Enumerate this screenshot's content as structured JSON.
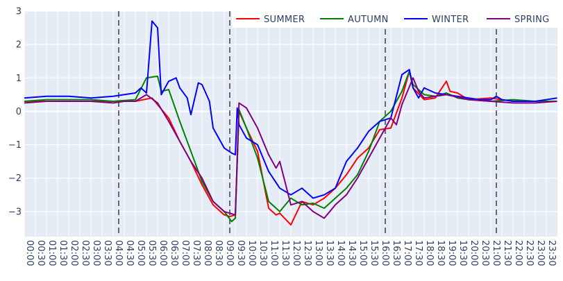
{
  "chart_data": {
    "type": "line",
    "title": "",
    "xlabel": "",
    "ylabel": "",
    "ylim": [
      -3.75,
      3
    ],
    "y_ticks": [
      {
        "value": 3,
        "label": "3"
      },
      {
        "value": 2,
        "label": "2"
      },
      {
        "value": 1,
        "label": "1"
      },
      {
        "value": 0,
        "label": "0"
      },
      {
        "value": -1,
        "label": "−1"
      },
      {
        "value": -2,
        "label": "−2"
      },
      {
        "value": -3,
        "label": "−3"
      }
    ],
    "x_tick_labels": [
      "00:00",
      "00:30",
      "01:00",
      "01:30",
      "02:00",
      "02:30",
      "03:00",
      "03:30",
      "04:00",
      "04:30",
      "05:00",
      "05:30",
      "06:00",
      "06:30",
      "07:00",
      "07:30",
      "08:00",
      "08:30",
      "09:00",
      "09:30",
      "10:00",
      "10:30",
      "11:00",
      "11:30",
      "12:00",
      "12:30",
      "13:00",
      "13:30",
      "14:00",
      "14:30",
      "15:00",
      "15:30",
      "16:00",
      "16:30",
      "17:00",
      "17:30",
      "18:00",
      "18:30",
      "19:00",
      "19:30",
      "20:00",
      "20:30",
      "21:00",
      "21:30",
      "22:00",
      "22:30",
      "23:00",
      "23:30"
    ],
    "vertical_markers": [
      "04:15",
      "09:15",
      "16:15",
      "21:15"
    ],
    "grid": true,
    "legend_position": "top-right",
    "series": [
      {
        "name": "SUMMER",
        "color": "#ff0000",
        "x": [
          "00:00",
          "01:00",
          "02:00",
          "03:00",
          "04:00",
          "04:45",
          "05:00",
          "05:45",
          "06:00",
          "06:30",
          "07:00",
          "07:30",
          "08:00",
          "08:30",
          "09:00",
          "09:15",
          "09:30",
          "09:40",
          "10:00",
          "10:30",
          "11:00",
          "11:20",
          "11:30",
          "12:00",
          "12:30",
          "13:00",
          "13:30",
          "14:00",
          "14:30",
          "15:00",
          "15:30",
          "16:00",
          "16:30",
          "17:00",
          "17:20",
          "17:30",
          "18:00",
          "18:30",
          "19:00",
          "19:10",
          "19:30",
          "20:00",
          "21:00",
          "21:30",
          "22:00",
          "23:00",
          "23:59"
        ],
        "values": [
          0.3,
          0.3,
          0.3,
          0.3,
          0.3,
          0.3,
          0.3,
          0.4,
          0.2,
          -0.2,
          -0.9,
          -1.5,
          -2.2,
          -2.8,
          -3.1,
          -3.15,
          -3.1,
          0.0,
          -0.5,
          -1.2,
          -2.9,
          -3.1,
          -3.05,
          -3.4,
          -2.7,
          -2.8,
          -2.6,
          -2.3,
          -1.9,
          -1.4,
          -1.1,
          -0.55,
          -0.5,
          0.4,
          1.2,
          0.7,
          0.35,
          0.4,
          0.9,
          0.6,
          0.55,
          0.35,
          0.4,
          0.35,
          0.3,
          0.3,
          0.3
        ]
      },
      {
        "name": "AUTUMN",
        "color": "#008000",
        "x": [
          "00:00",
          "01:00",
          "02:00",
          "03:00",
          "04:00",
          "05:00",
          "05:30",
          "06:00",
          "06:10",
          "06:30",
          "07:00",
          "07:30",
          "08:00",
          "08:30",
          "09:00",
          "09:20",
          "09:30",
          "09:40",
          "10:00",
          "10:30",
          "11:00",
          "11:30",
          "12:00",
          "12:30",
          "13:00",
          "13:30",
          "14:00",
          "14:30",
          "15:00",
          "15:30",
          "16:00",
          "16:30",
          "17:00",
          "17:20",
          "17:30",
          "18:00",
          "18:30",
          "19:00",
          "19:30",
          "20:00",
          "21:00",
          "22:00",
          "23:00",
          "23:59"
        ],
        "values": [
          0.3,
          0.35,
          0.35,
          0.35,
          0.3,
          0.35,
          1.0,
          1.05,
          0.6,
          0.65,
          -0.3,
          -1.2,
          -2.1,
          -2.7,
          -3.0,
          -3.3,
          -3.2,
          0.05,
          -0.5,
          -1.4,
          -2.7,
          -3.0,
          -2.6,
          -2.8,
          -2.75,
          -2.9,
          -2.6,
          -2.3,
          -1.9,
          -1.2,
          -0.3,
          0.0,
          0.6,
          1.2,
          0.8,
          0.5,
          0.45,
          0.55,
          0.4,
          0.35,
          0.3,
          0.35,
          0.3,
          0.3
        ]
      },
      {
        "name": "WINTER",
        "color": "#0000ff",
        "x": [
          "00:00",
          "01:00",
          "02:00",
          "03:00",
          "04:00",
          "04:30",
          "05:00",
          "05:15",
          "05:30",
          "05:45",
          "06:00",
          "06:10",
          "06:30",
          "06:50",
          "07:00",
          "07:20",
          "07:30",
          "07:50",
          "08:00",
          "08:20",
          "08:30",
          "09:00",
          "09:20",
          "09:30",
          "09:35",
          "09:40",
          "10:00",
          "10:30",
          "11:00",
          "11:30",
          "12:00",
          "12:30",
          "13:00",
          "13:30",
          "14:00",
          "14:30",
          "15:00",
          "15:30",
          "16:00",
          "16:30",
          "17:00",
          "17:20",
          "17:30",
          "17:45",
          "18:00",
          "18:30",
          "19:00",
          "20:00",
          "20:30",
          "21:00",
          "21:15",
          "21:30",
          "22:00",
          "22:30",
          "23:00",
          "23:30",
          "23:59"
        ],
        "values": [
          0.4,
          0.45,
          0.45,
          0.4,
          0.45,
          0.5,
          0.55,
          0.7,
          0.55,
          2.7,
          2.5,
          0.5,
          0.9,
          1.0,
          0.7,
          0.4,
          -0.1,
          0.85,
          0.8,
          0.3,
          -0.5,
          -1.1,
          -1.25,
          -1.3,
          0.1,
          -0.4,
          -0.8,
          -1.0,
          -1.8,
          -2.3,
          -2.5,
          -2.3,
          -2.6,
          -2.5,
          -2.3,
          -1.5,
          -1.1,
          -0.6,
          -0.3,
          -0.2,
          1.1,
          1.25,
          0.7,
          0.4,
          0.7,
          0.55,
          0.5,
          0.4,
          0.35,
          0.35,
          0.45,
          0.35,
          0.3,
          0.3,
          0.3,
          0.35,
          0.4
        ]
      },
      {
        "name": "SPRING",
        "color": "#800080",
        "x": [
          "00:00",
          "01:00",
          "02:00",
          "03:00",
          "04:00",
          "04:30",
          "05:00",
          "05:30",
          "06:00",
          "06:30",
          "07:00",
          "07:30",
          "08:00",
          "08:30",
          "09:00",
          "09:30",
          "09:40",
          "10:00",
          "10:30",
          "11:00",
          "11:20",
          "11:30",
          "12:00",
          "12:30",
          "13:00",
          "13:30",
          "14:00",
          "14:30",
          "15:00",
          "15:30",
          "16:00",
          "16:30",
          "16:45",
          "17:00",
          "17:30",
          "17:45",
          "18:00",
          "18:30",
          "19:00",
          "20:00",
          "21:00",
          "22:00",
          "23:00",
          "23:59"
        ],
        "values": [
          0.25,
          0.3,
          0.3,
          0.3,
          0.25,
          0.3,
          0.3,
          0.5,
          0.25,
          -0.3,
          -0.9,
          -1.5,
          -2.0,
          -2.7,
          -3.0,
          -3.1,
          0.25,
          0.1,
          -0.5,
          -1.3,
          -1.7,
          -1.5,
          -2.8,
          -2.7,
          -3.0,
          -3.2,
          -2.8,
          -2.5,
          -2.0,
          -1.4,
          -0.8,
          -0.2,
          -0.4,
          0.2,
          1.0,
          0.6,
          0.4,
          0.45,
          0.5,
          0.35,
          0.3,
          0.25,
          0.25,
          0.3
        ]
      }
    ]
  }
}
